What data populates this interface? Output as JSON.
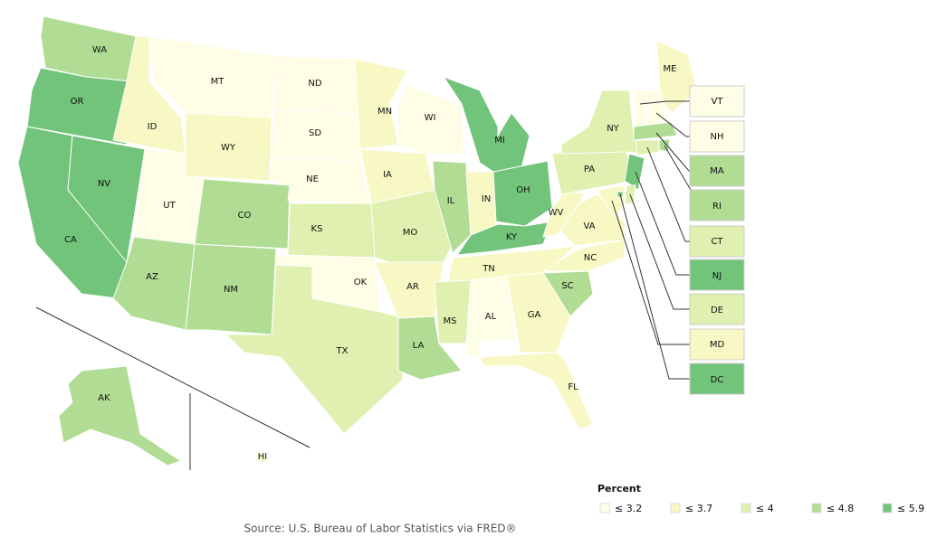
{
  "legend": {
    "title": "Percent",
    "items": [
      {
        "label": "≤ 3.2",
        "color": "#fefee6"
      },
      {
        "label": "≤ 3.7",
        "color": "#f7f8c4"
      },
      {
        "label": "≤ 4",
        "color": "#dff0b0"
      },
      {
        "label": "≤ 4.8",
        "color": "#b0dc94"
      },
      {
        "label": "≤ 5.9",
        "color": "#72c47a"
      }
    ]
  },
  "states": [
    {
      "label": "WA",
      "color": "#b0dc94"
    },
    {
      "label": "OR",
      "color": "#72c47a"
    },
    {
      "label": "CA",
      "color": "#72c47a"
    },
    {
      "label": "NV",
      "color": "#72c47a"
    },
    {
      "label": "ID",
      "color": "#f7f8c4"
    },
    {
      "label": "MT",
      "color": "#fefee6"
    },
    {
      "label": "WY",
      "color": "#f7f8c4"
    },
    {
      "label": "UT",
      "color": "#fefee6"
    },
    {
      "label": "CO",
      "color": "#b0dc94"
    },
    {
      "label": "AZ",
      "color": "#b0dc94"
    },
    {
      "label": "NM",
      "color": "#b0dc94"
    },
    {
      "label": "ND",
      "color": "#fefee6"
    },
    {
      "label": "SD",
      "color": "#fefee6"
    },
    {
      "label": "NE",
      "color": "#fefee6"
    },
    {
      "label": "KS",
      "color": "#dff0b0"
    },
    {
      "label": "OK",
      "color": "#fefee6"
    },
    {
      "label": "TX",
      "color": "#dff0b0"
    },
    {
      "label": "MN",
      "color": "#f7f8c4"
    },
    {
      "label": "IA",
      "color": "#f7f8c4"
    },
    {
      "label": "MO",
      "color": "#dff0b0"
    },
    {
      "label": "AR",
      "color": "#f7f8c4"
    },
    {
      "label": "LA",
      "color": "#b0dc94"
    },
    {
      "label": "WI",
      "color": "#fefee6"
    },
    {
      "label": "IL",
      "color": "#b0dc94"
    },
    {
      "label": "MI",
      "color": "#72c47a"
    },
    {
      "label": "IN",
      "color": "#f7f8c4"
    },
    {
      "label": "OH",
      "color": "#72c47a"
    },
    {
      "label": "KY",
      "color": "#72c47a"
    },
    {
      "label": "TN",
      "color": "#f7f8c4"
    },
    {
      "label": "MS",
      "color": "#dff0b0"
    },
    {
      "label": "AL",
      "color": "#fefee6"
    },
    {
      "label": "GA",
      "color": "#f7f8c4"
    },
    {
      "label": "FL",
      "color": "#f7f8c4"
    },
    {
      "label": "SC",
      "color": "#b0dc94"
    },
    {
      "label": "NC",
      "color": "#f7f8c4"
    },
    {
      "label": "VA",
      "color": "#f7f8c4"
    },
    {
      "label": "WV",
      "color": "#f7f8c4"
    },
    {
      "label": "PA",
      "color": "#dff0b0"
    },
    {
      "label": "NY",
      "color": "#dff0b0"
    },
    {
      "label": "ME",
      "color": "#f7f8c4"
    },
    {
      "label": "VT",
      "color": "#fefee6"
    },
    {
      "label": "NH",
      "color": "#fefee6"
    },
    {
      "label": "MA",
      "color": "#b0dc94"
    },
    {
      "label": "RI",
      "color": "#b0dc94"
    },
    {
      "label": "CT",
      "color": "#dff0b0"
    },
    {
      "label": "NJ",
      "color": "#72c47a"
    },
    {
      "label": "DE",
      "color": "#dff0b0"
    },
    {
      "label": "MD",
      "color": "#f7f8c4"
    },
    {
      "label": "DC",
      "color": "#72c47a"
    },
    {
      "label": "AK",
      "color": "#b0dc94"
    },
    {
      "label": "HI",
      "color": "#f7f8c4"
    }
  ],
  "source": "Source: U.S. Bureau of Labor Statistics via FRED®"
}
